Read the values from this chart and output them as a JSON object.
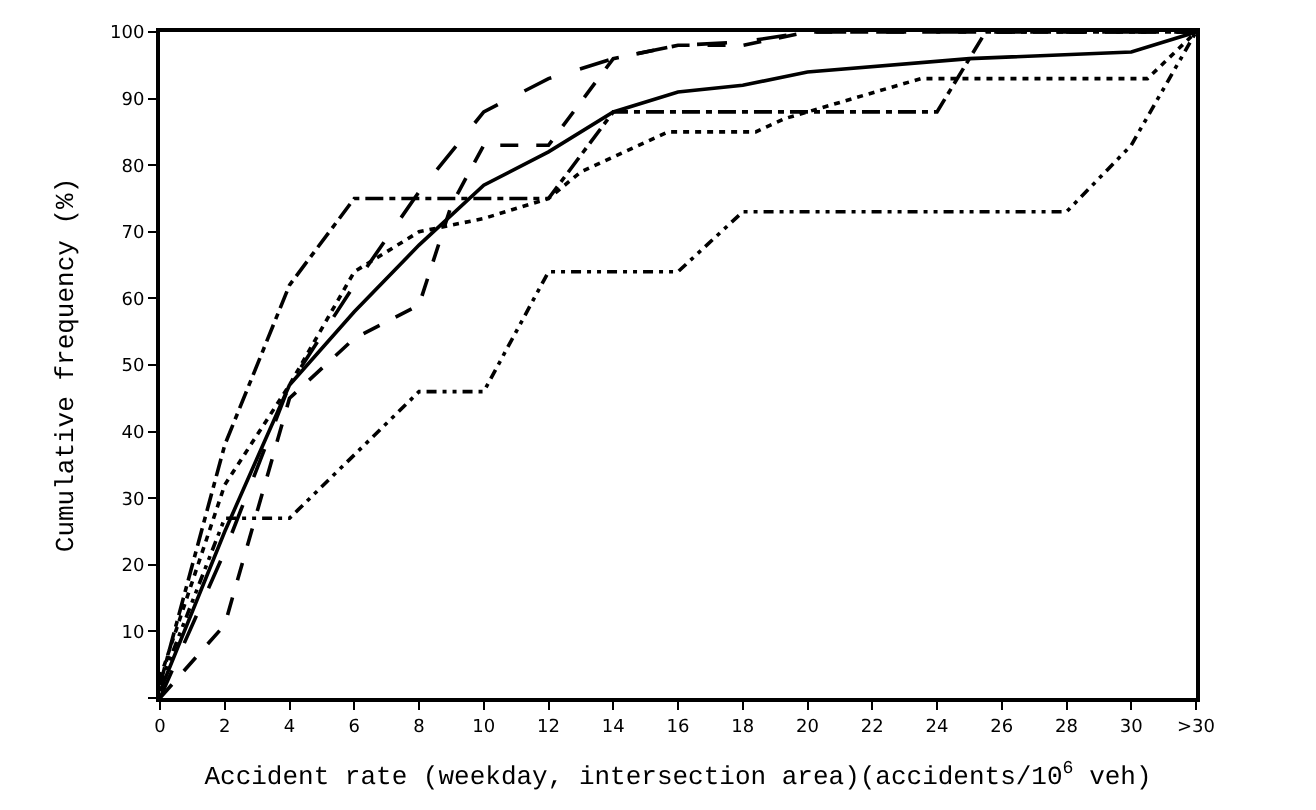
{
  "chart_data": {
    "type": "line",
    "xlabel": "Accident rate (weekday, intersection area)(accidents/10$^{6}$ veh)",
    "ylabel": "Cumulative frequency (%)",
    "xlim": [
      0,
      32
    ],
    "ylim": [
      0,
      100
    ],
    "xticks": [
      0,
      2,
      4,
      6,
      8,
      10,
      12,
      14,
      16,
      18,
      20,
      22,
      24,
      26,
      28,
      30,
      {
        "value": 32,
        "label": ">30"
      }
    ],
    "yticks": [
      {
        "value": 0,
        "label": null
      },
      10,
      20,
      30,
      40,
      50,
      60,
      70,
      80,
      90,
      100
    ],
    "marker": "none",
    "series": [
      {
        "color": "#000000",
        "line_style": "solid",
        "x": [
          0,
          2,
          4,
          6,
          8,
          10,
          12,
          14,
          16,
          18,
          20,
          25,
          30,
          32
        ],
        "values": [
          1,
          25,
          47,
          58,
          68,
          77,
          82,
          88,
          91,
          92,
          94,
          96,
          97,
          100
        ]
      },
      {
        "color": "#000000",
        "line_style": "dotted",
        "x": [
          0,
          2,
          4,
          6,
          8,
          10,
          12,
          13,
          15.7,
          18.4,
          19.3,
          23.5,
          30.5,
          32
        ],
        "values": [
          3,
          32,
          47,
          64,
          70,
          72,
          75,
          79,
          85,
          85,
          87,
          93,
          93,
          100
        ]
      },
      {
        "color": "#000000",
        "line_style": "dashed",
        "x": [
          0,
          2,
          4,
          6,
          8,
          9,
          10,
          12,
          14,
          16,
          18,
          20,
          32
        ],
        "values": [
          0,
          11,
          45,
          54,
          59,
          74,
          83,
          83,
          96,
          98,
          98,
          100,
          100
        ]
      },
      {
        "color": "#000000",
        "line_style": "dashdot",
        "x": [
          0,
          2,
          4,
          6,
          12,
          14,
          24,
          25.5,
          32
        ],
        "values": [
          2,
          38,
          62,
          75,
          75,
          88,
          88,
          100,
          100
        ]
      },
      {
        "color": "#000000",
        "line_style": "longdash",
        "x": [
          0,
          2,
          4,
          6,
          8,
          10,
          12,
          14,
          16,
          18,
          20,
          32
        ],
        "values": [
          0,
          22,
          47,
          62,
          76,
          88,
          93,
          96,
          98,
          98.5,
          100,
          100
        ]
      },
      {
        "color": "#000000",
        "line_style": "dashdotdot",
        "x": [
          0,
          2,
          4,
          8,
          10,
          12,
          16,
          18,
          28,
          30,
          32
        ],
        "values": [
          2,
          27,
          27,
          46,
          46,
          64,
          64,
          73,
          73,
          83,
          100
        ]
      }
    ]
  }
}
